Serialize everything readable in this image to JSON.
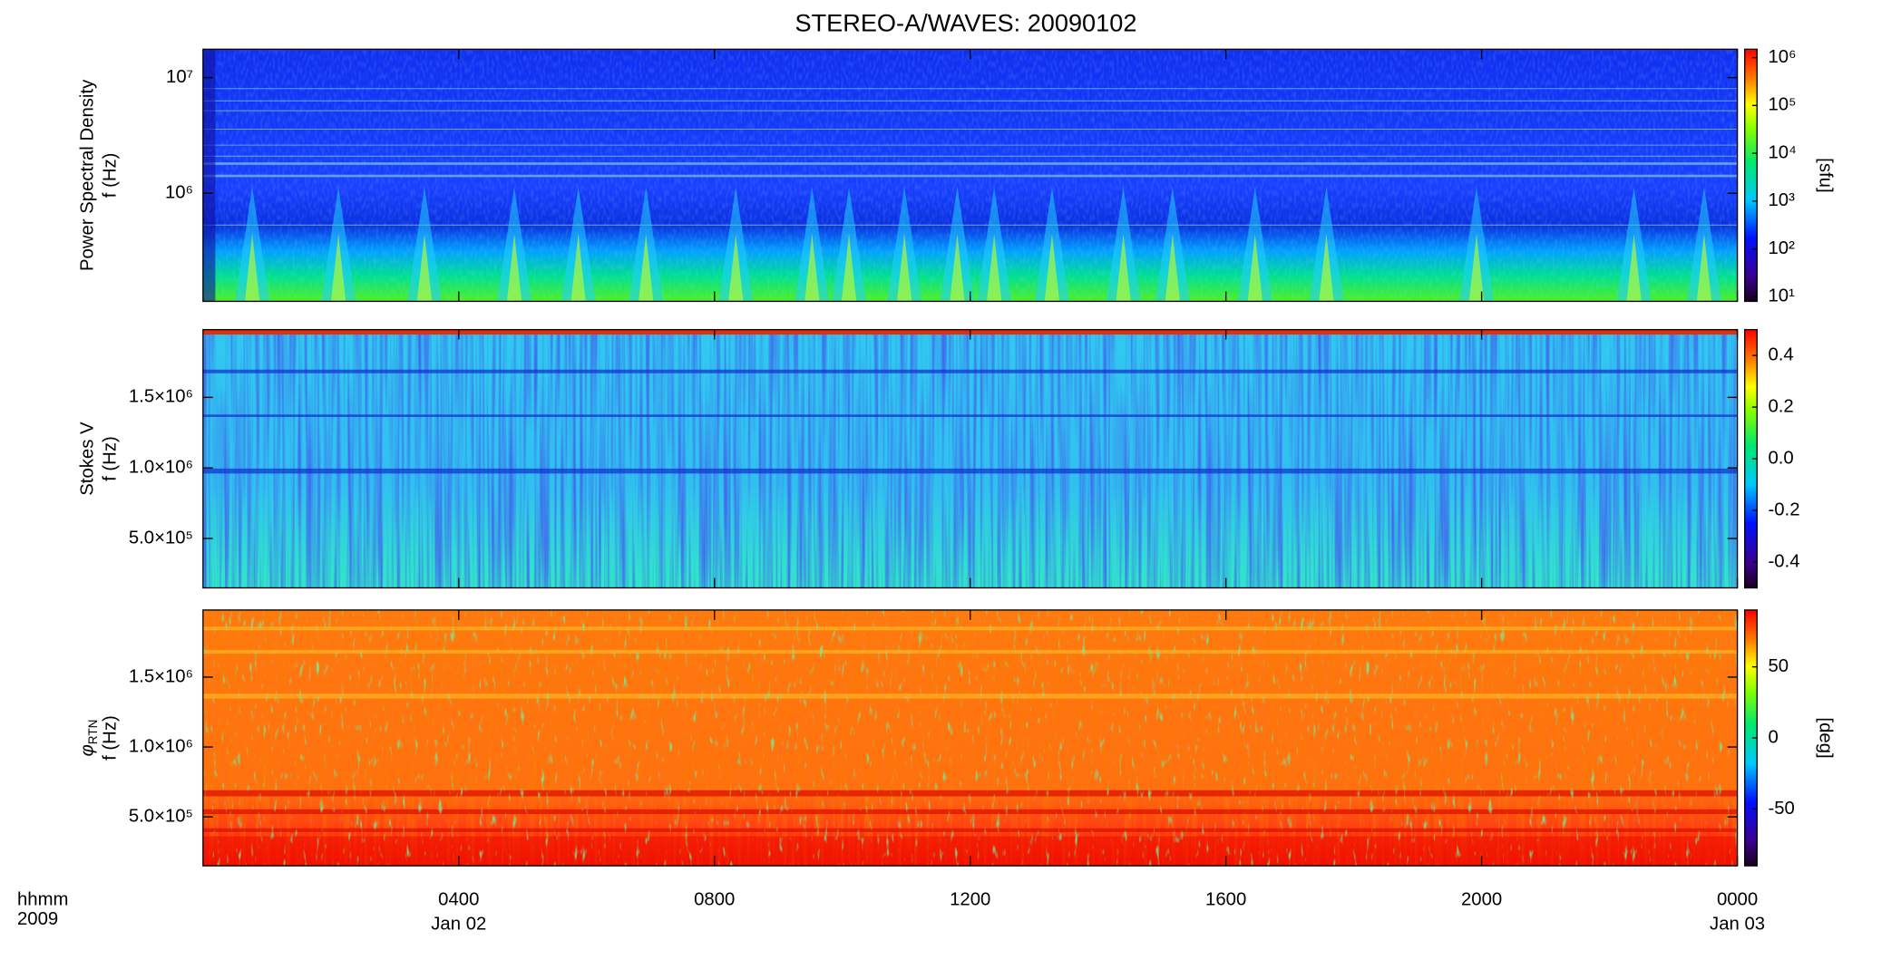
{
  "chart_data": {
    "title": "STEREO-A/WAVES: 20090102",
    "x_header": [
      "hhmm",
      "2009"
    ],
    "xlim": [
      0,
      24
    ],
    "xticks": [
      {
        "value": 4,
        "label": "0400",
        "sublabel": "Jan 02"
      },
      {
        "value": 8,
        "label": "0800"
      },
      {
        "value": 12,
        "label": "1200"
      },
      {
        "value": 16,
        "label": "1600"
      },
      {
        "value": 20,
        "label": "2000"
      },
      {
        "value": 24,
        "label": "0000",
        "sublabel": "Jan 03"
      }
    ],
    "panels": [
      {
        "type": "heatmap",
        "style": "psd",
        "ylabel": "Power Spectral Density",
        "ylabel2": "f (Hz)",
        "ylog": true,
        "ylim": [
          116000,
          17600000
        ],
        "yticks": [
          {
            "value": 1000000,
            "label": "10⁶"
          },
          {
            "value": 10000000,
            "label": "10⁷"
          }
        ],
        "colorbar": {
          "log": true,
          "lim": [
            8,
            1500000
          ],
          "label": "[sfu]",
          "ticks": [
            {
              "value": 10,
              "label": "10¹"
            },
            {
              "value": 100,
              "label": "10²"
            },
            {
              "value": 1000,
              "label": "10³"
            },
            {
              "value": 10000,
              "label": "10⁴"
            },
            {
              "value": 100000,
              "label": "10⁵"
            },
            {
              "value": 1000000,
              "label": "10⁶"
            }
          ]
        }
      },
      {
        "type": "heatmap",
        "style": "stokes",
        "ylabel": "Stokes V",
        "ylabel2": "f (Hz)",
        "ylog": false,
        "ylim": [
          150000,
          1980000
        ],
        "yticks": [
          {
            "value": 500000,
            "label": "5.0×10⁵"
          },
          {
            "value": 1000000,
            "label": "1.0×10⁶"
          },
          {
            "value": 1500000,
            "label": "1.5×10⁶"
          }
        ],
        "colorbar": {
          "log": false,
          "lim": [
            -0.5,
            0.5
          ],
          "ticks": [
            {
              "value": -0.4,
              "label": "-0.4"
            },
            {
              "value": -0.2,
              "label": "-0.2"
            },
            {
              "value": 0,
              "label": "0.0"
            },
            {
              "value": 0.2,
              "label": "0.2"
            },
            {
              "value": 0.4,
              "label": "0.4"
            }
          ]
        }
      },
      {
        "type": "heatmap",
        "style": "phase",
        "ylabel": "φ",
        "ylabel_sub": "RTN",
        "ylabel2": "f (Hz)",
        "ylog": false,
        "ylim": [
          150000,
          1980000
        ],
        "yticks": [
          {
            "value": 500000,
            "label": "5.0×10⁵"
          },
          {
            "value": 1000000,
            "label": "1.0×10⁶"
          },
          {
            "value": 1500000,
            "label": "1.5×10⁶"
          }
        ],
        "colorbar": {
          "log": false,
          "lim": [
            -90,
            90
          ],
          "label": "[deg]",
          "ticks": [
            -50,
            0,
            50
          ]
        }
      }
    ]
  }
}
